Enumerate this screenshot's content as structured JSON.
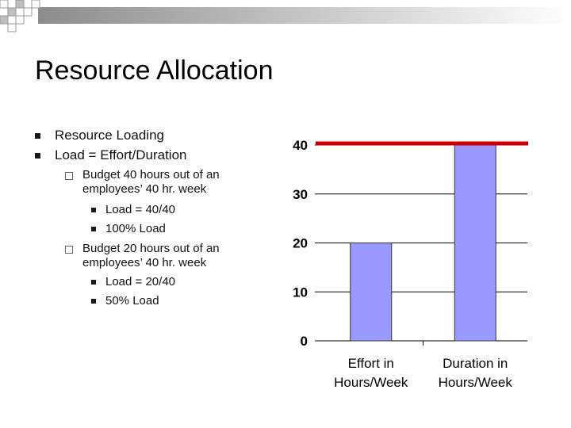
{
  "slide": {
    "title": "Resource Allocation",
    "bullets": [
      {
        "label": "Resource Loading"
      },
      {
        "label": "Load = Effort/Duration"
      }
    ],
    "sub_bullets": [
      {
        "line1": "Budget 40 hours out of an",
        "line2": "employees’ 40 hr. week",
        "items": [
          "Load = 40/40",
          "100% Load"
        ]
      },
      {
        "line1": "Budget 20 hours out of an",
        "line2": "employees’ 40 hr. week",
        "items": [
          "Load = 20/40",
          "50% Load"
        ]
      }
    ]
  },
  "colors": {
    "bar": "#9999ff",
    "limit_line": "#cc0000",
    "deco": "#a6a6a6"
  },
  "chart_data": {
    "type": "bar",
    "categories": [
      [
        "Effort in",
        "Hours/Week"
      ],
      [
        "Duration in",
        "Hours/Week"
      ]
    ],
    "values": [
      20,
      40
    ],
    "yticks": [
      "0",
      "10",
      "20",
      "30",
      "40"
    ],
    "ylim": [
      0,
      40
    ],
    "reference_line": 40,
    "grid": true,
    "title": "",
    "xlabel": "",
    "ylabel": ""
  }
}
